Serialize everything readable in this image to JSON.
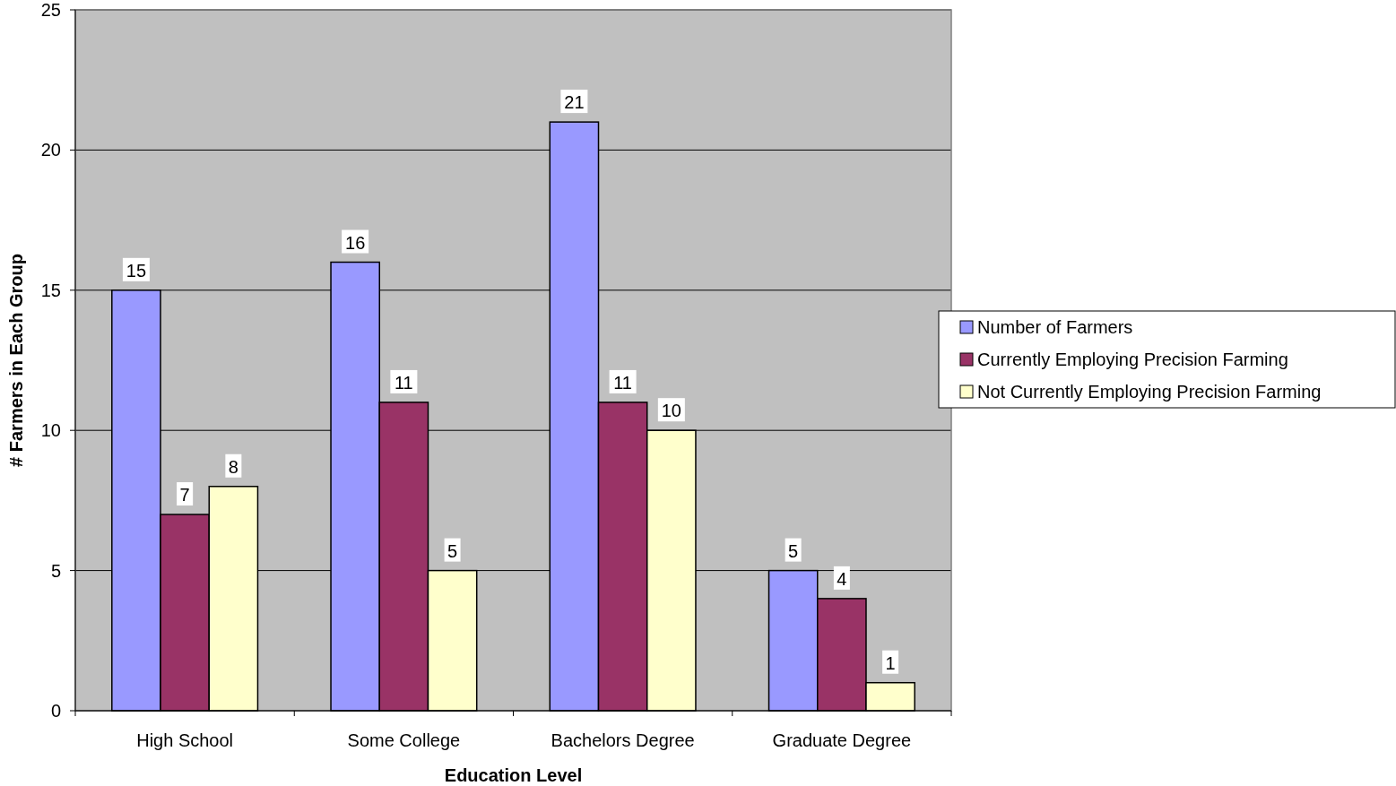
{
  "chart_data": {
    "type": "bar",
    "xlabel": "Education Level",
    "ylabel": "# Farmers in Each Group",
    "categories": [
      "High School",
      "Some College",
      "Bachelors Degree",
      "Graduate Degree"
    ],
    "series": [
      {
        "name": "Number of Farmers",
        "color": "#9999ff",
        "values": [
          15,
          16,
          21,
          5
        ]
      },
      {
        "name": "Currently Employing Precision Farming",
        "color": "#993366",
        "values": [
          7,
          11,
          11,
          4
        ]
      },
      {
        "name": "Not Currently Employing Precision Farming",
        "color": "#ffffcc",
        "values": [
          8,
          5,
          10,
          1
        ]
      }
    ],
    "ylim": [
      0,
      25
    ],
    "yticks": [
      0,
      5,
      10,
      15,
      20,
      25
    ],
    "grid": "y",
    "legend": "right",
    "data_labels": true
  }
}
